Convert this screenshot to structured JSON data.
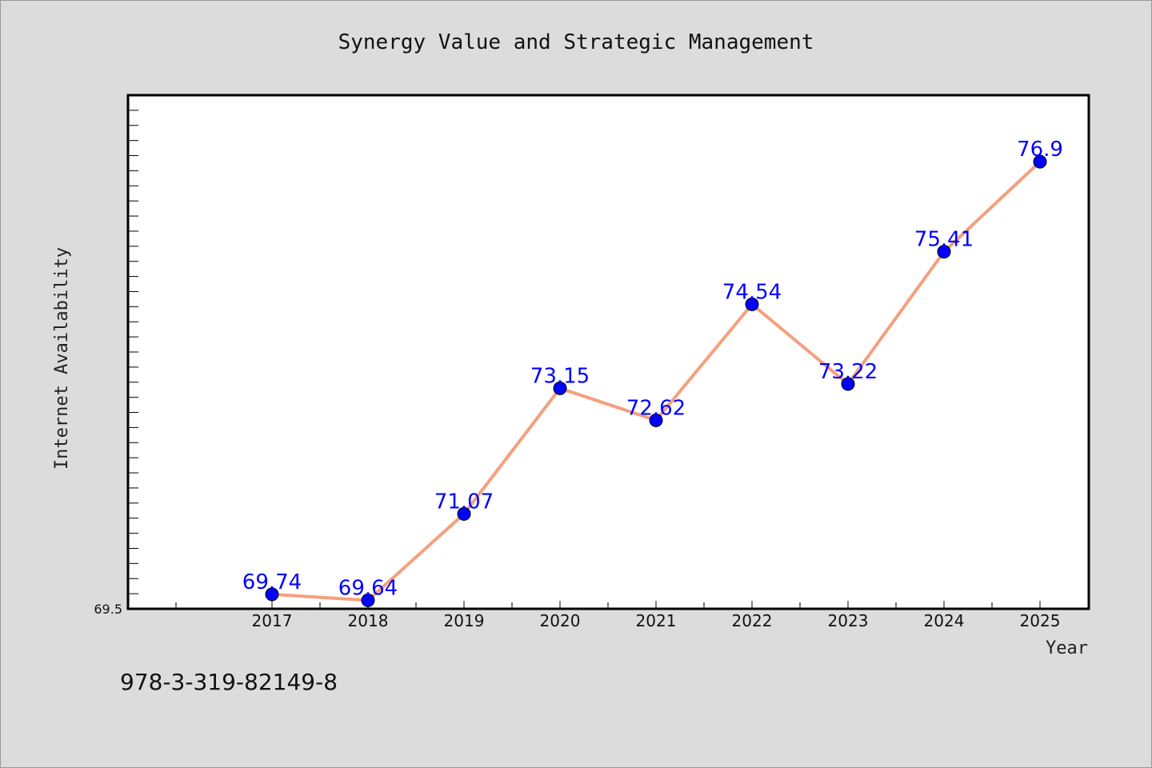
{
  "chart_data": {
    "type": "line",
    "title": "Synergy Value and Strategic Management",
    "xlabel": "Year",
    "ylabel": "Internet Availability",
    "categories": [
      "2017",
      "2018",
      "2019",
      "2020",
      "2021",
      "2022",
      "2023",
      "2024",
      "2025"
    ],
    "series": [
      {
        "values": [
          69.74,
          69.64,
          71.07,
          73.15,
          72.62,
          74.54,
          73.22,
          75.41,
          76.9
        ]
      }
    ],
    "data_labels": [
      "69.74",
      "69.64",
      "71.07",
      "73.15",
      "72.62",
      "74.54",
      "73.22",
      "75.41",
      "76.9"
    ],
    "y_tick_labels": [
      "69.5"
    ],
    "ylim": [
      69.5,
      78.0
    ],
    "grid": false,
    "line_color": "#f4a07e",
    "marker_color": "#0000ff",
    "label_color": "#0000ff"
  },
  "footer": {
    "isbn": "978-3-319-82149-8"
  }
}
